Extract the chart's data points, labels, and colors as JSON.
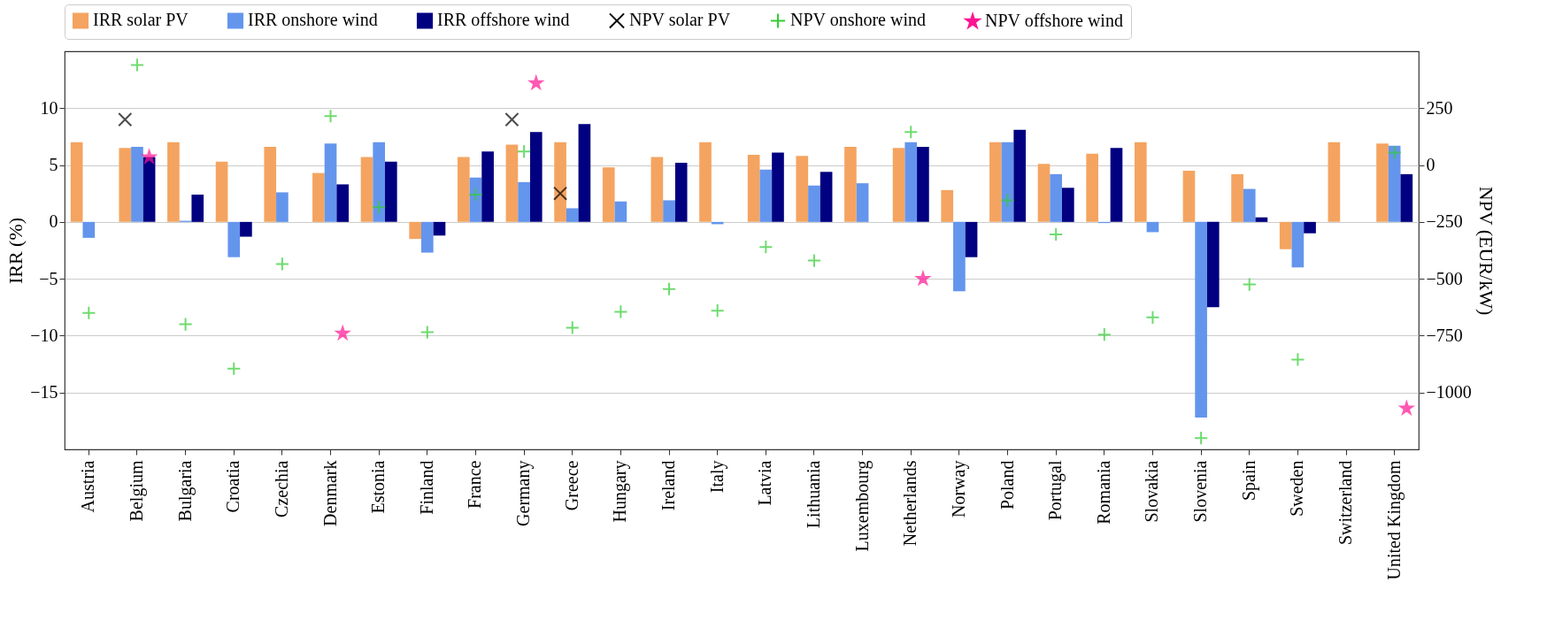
{
  "chart_data": {
    "type": "bar",
    "categories": [
      "Austria",
      "Belgium",
      "Bulgaria",
      "Croatia",
      "Czechia",
      "Denmark",
      "Estonia",
      "Finland",
      "France",
      "Germany",
      "Greece",
      "Hungary",
      "Ireland",
      "Italy",
      "Latvia",
      "Lithuania",
      "Luxembourg",
      "Netherlands",
      "Norway",
      "Poland",
      "Portugal",
      "Romania",
      "Slovakia",
      "Slovenia",
      "Spain",
      "Sweden",
      "Switzerland",
      "United Kingdom"
    ],
    "ylabel": "IRR (%)",
    "y2label": "NPV (EUR/kW)",
    "ylim": [
      -20,
      15
    ],
    "yticks": [
      -15,
      -10,
      -5,
      0,
      5,
      10
    ],
    "y2lim": [
      -1250,
      500
    ],
    "y2ticks": [
      -1000,
      -750,
      -500,
      -250,
      0,
      250
    ],
    "grid": "y",
    "legend": "top",
    "series": [
      {
        "name": "IRR solar PV",
        "color": "#f4a460",
        "values": [
          7.0,
          6.5,
          7.0,
          5.3,
          6.6,
          4.3,
          5.7,
          -1.5,
          5.7,
          6.8,
          7.0,
          4.8,
          5.7,
          7.0,
          5.9,
          5.8,
          6.6,
          6.5,
          2.8,
          7.0,
          5.1,
          6.0,
          7.0,
          4.5,
          4.2,
          -2.4,
          7.0,
          6.9
        ]
      },
      {
        "name": "IRR onshore wind",
        "color": "#6495ed",
        "values": [
          -1.4,
          6.6,
          0.1,
          -3.1,
          2.6,
          6.9,
          7.0,
          -2.7,
          3.9,
          3.5,
          1.2,
          1.8,
          1.9,
          -0.2,
          4.6,
          3.2,
          3.4,
          7.0,
          -6.1,
          7.0,
          4.2,
          -0.1,
          -0.9,
          -17.2,
          2.9,
          -4.0,
          null,
          6.7
        ]
      },
      {
        "name": "IRR offshore wind",
        "color": "#000080",
        "values": [
          null,
          5.7,
          2.4,
          -1.3,
          null,
          3.3,
          5.3,
          -1.2,
          6.2,
          7.9,
          8.6,
          null,
          5.2,
          null,
          6.1,
          4.4,
          null,
          6.6,
          -3.1,
          8.1,
          3.0,
          6.5,
          null,
          -7.5,
          0.4,
          -1.0,
          null,
          4.2
        ]
      },
      {
        "name": "NPV solar PV",
        "type": "scatter",
        "axis": "y2",
        "marker": "cross",
        "color": "#000000",
        "values": [
          null,
          200,
          null,
          null,
          null,
          null,
          null,
          null,
          null,
          200,
          -125,
          null,
          null,
          null,
          null,
          null,
          null,
          null,
          null,
          null,
          null,
          null,
          null,
          null,
          null,
          null,
          null,
          null
        ]
      },
      {
        "name": "NPV onshore wind",
        "type": "scatter",
        "axis": "y2",
        "marker": "plus",
        "color": "#32cd32",
        "values": [
          -650,
          440,
          -700,
          -895,
          -435,
          215,
          -185,
          -735,
          -130,
          60,
          -715,
          -645,
          -545,
          -640,
          -360,
          -420,
          null,
          145,
          null,
          -155,
          -305,
          -745,
          -670,
          -1200,
          -525,
          -855,
          null,
          55
        ]
      },
      {
        "name": "NPV offshore wind",
        "type": "scatter",
        "axis": "y2",
        "marker": "star",
        "color": "#ff1493",
        "values": [
          null,
          35,
          null,
          null,
          null,
          -740,
          null,
          null,
          null,
          360,
          null,
          null,
          null,
          null,
          null,
          null,
          null,
          -500,
          null,
          null,
          null,
          null,
          null,
          null,
          null,
          null,
          null,
          -1070
        ]
      }
    ]
  }
}
